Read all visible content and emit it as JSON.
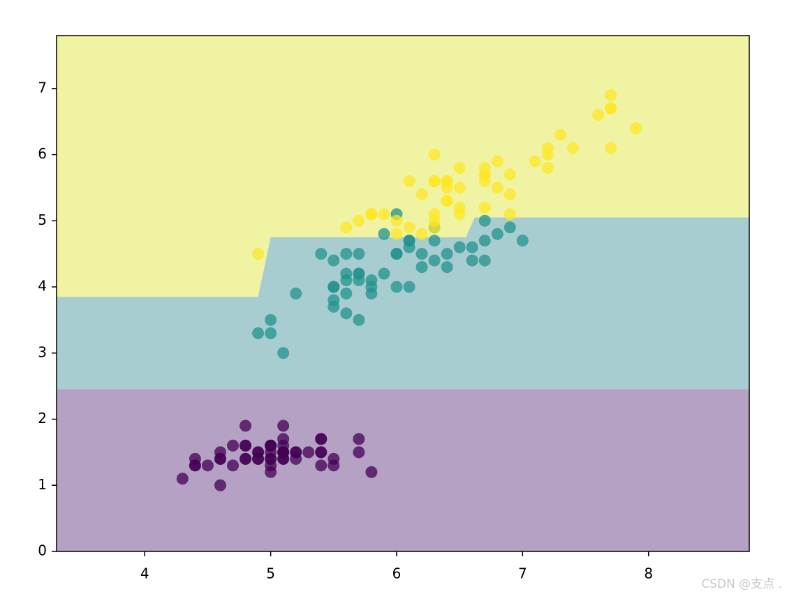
{
  "chart_data": {
    "type": "scatter",
    "xlim": [
      3.3,
      8.8
    ],
    "ylim": [
      0,
      7.8
    ],
    "xticks": [
      4,
      5,
      6,
      7,
      8
    ],
    "yticks": [
      0,
      1,
      2,
      3,
      4,
      5,
      6,
      7
    ],
    "background": "#f0f3a2",
    "regions": [
      {
        "color": "#a8cdd1",
        "x": [
          3.3,
          4.9,
          5.0,
          6.55,
          6.62,
          8.8
        ],
        "upper": [
          3.85,
          3.85,
          4.75,
          4.75,
          5.05,
          5.05
        ]
      },
      {
        "color": "#b4a1c4",
        "x": [
          3.3,
          8.8
        ],
        "upper": [
          2.45,
          2.45
        ]
      }
    ],
    "series": [
      {
        "color": "#440154",
        "x": [
          5.1,
          4.9,
          4.7,
          4.6,
          5.0,
          5.4,
          4.6,
          5.0,
          4.4,
          4.9,
          5.4,
          4.8,
          4.8,
          4.3,
          5.8,
          5.7,
          5.4,
          5.1,
          5.7,
          5.1,
          5.4,
          5.1,
          4.6,
          5.1,
          4.8,
          5.0,
          5.0,
          5.2,
          5.2,
          4.7,
          4.8,
          5.4,
          5.2,
          5.5,
          4.9,
          5.0,
          5.5,
          4.9,
          4.4,
          5.1,
          5.0,
          4.5,
          4.4,
          5.0,
          5.1,
          4.8,
          5.1,
          4.6,
          5.3,
          5.0
        ],
        "y": [
          1.4,
          1.4,
          1.3,
          1.5,
          1.4,
          1.7,
          1.4,
          1.5,
          1.4,
          1.5,
          1.5,
          1.6,
          1.4,
          1.1,
          1.2,
          1.5,
          1.3,
          1.4,
          1.7,
          1.5,
          1.7,
          1.5,
          1.0,
          1.7,
          1.9,
          1.6,
          1.6,
          1.5,
          1.4,
          1.6,
          1.6,
          1.5,
          1.5,
          1.4,
          1.5,
          1.2,
          1.3,
          1.4,
          1.3,
          1.5,
          1.3,
          1.3,
          1.3,
          1.6,
          1.9,
          1.4,
          1.6,
          1.4,
          1.5,
          1.4
        ]
      },
      {
        "color": "#21918c",
        "x": [
          7.0,
          6.4,
          6.9,
          5.5,
          6.5,
          5.7,
          6.3,
          4.9,
          6.6,
          5.2,
          5.0,
          5.9,
          6.0,
          6.1,
          5.6,
          6.7,
          5.6,
          5.8,
          6.2,
          5.6,
          5.9,
          6.1,
          6.3,
          6.1,
          6.4,
          6.6,
          6.8,
          6.7,
          6.0,
          5.7,
          5.5,
          5.5,
          5.8,
          6.0,
          5.4,
          6.0,
          6.7,
          6.3,
          5.6,
          5.5,
          5.5,
          6.1,
          5.8,
          5.0,
          5.6,
          5.7,
          5.7,
          6.2,
          5.1,
          5.7
        ],
        "y": [
          4.7,
          4.5,
          4.9,
          4.0,
          4.6,
          4.5,
          4.7,
          3.3,
          4.6,
          3.9,
          3.5,
          4.2,
          4.0,
          4.7,
          3.6,
          4.4,
          4.5,
          4.1,
          4.5,
          3.9,
          4.8,
          4.0,
          4.9,
          4.7,
          4.3,
          4.4,
          4.8,
          5.0,
          4.5,
          3.5,
          3.8,
          3.7,
          3.9,
          5.1,
          4.5,
          4.5,
          4.7,
          4.4,
          4.1,
          4.0,
          4.4,
          4.6,
          4.0,
          3.3,
          4.2,
          4.2,
          4.2,
          4.3,
          3.0,
          4.1
        ]
      },
      {
        "color": "#fde725",
        "x": [
          6.3,
          5.8,
          7.1,
          6.3,
          6.5,
          7.6,
          4.9,
          7.3,
          6.7,
          7.2,
          6.5,
          6.4,
          6.8,
          5.7,
          5.8,
          6.4,
          6.5,
          7.7,
          7.7,
          6.0,
          6.9,
          5.6,
          7.7,
          6.3,
          6.7,
          7.2,
          6.2,
          6.1,
          6.4,
          7.2,
          7.4,
          7.9,
          6.4,
          6.3,
          6.1,
          7.7,
          6.3,
          6.4,
          6.0,
          6.9,
          6.7,
          6.9,
          5.8,
          6.8,
          6.7,
          6.7,
          6.3,
          6.5,
          6.2,
          5.9
        ],
        "y": [
          6.0,
          5.1,
          5.9,
          5.6,
          5.8,
          6.6,
          4.5,
          6.3,
          5.8,
          6.1,
          5.1,
          5.3,
          5.5,
          5.0,
          5.1,
          5.3,
          5.5,
          6.7,
          6.9,
          5.0,
          5.7,
          4.9,
          6.7,
          4.9,
          5.7,
          6.0,
          4.8,
          4.9,
          5.6,
          5.8,
          6.1,
          6.4,
          5.6,
          5.1,
          5.6,
          6.1,
          5.6,
          5.5,
          4.8,
          5.4,
          5.6,
          5.1,
          5.1,
          5.9,
          5.7,
          5.2,
          5.0,
          5.2,
          5.4,
          5.1
        ]
      }
    ],
    "watermark": "CSDN @支点 ."
  }
}
